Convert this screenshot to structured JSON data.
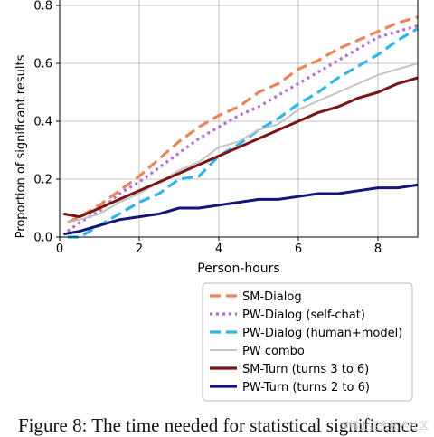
{
  "chart_data": {
    "type": "line",
    "xlabel": "Person-hours",
    "ylabel": "Proportion of significant results",
    "xlim": [
      0,
      9
    ],
    "ylim": [
      0,
      0.85
    ],
    "xticks": [
      "0",
      "2",
      "4",
      "6",
      "8"
    ],
    "yticks": [
      "0.0",
      "0.2",
      "0.4",
      "0.6",
      "0.8"
    ],
    "grid": true,
    "legend_position": "below",
    "series": [
      {
        "name": "SM-Dialog",
        "color": "#e8875a",
        "style": "dashed",
        "x": [
          0.2,
          0.5,
          1,
          1.5,
          2,
          2.5,
          3,
          3.5,
          4,
          4.5,
          5,
          5.5,
          6,
          6.5,
          7,
          7.5,
          8,
          8.5,
          9
        ],
        "y": [
          0.05,
          0.07,
          0.11,
          0.16,
          0.21,
          0.27,
          0.33,
          0.38,
          0.42,
          0.45,
          0.5,
          0.53,
          0.58,
          0.61,
          0.65,
          0.68,
          0.71,
          0.74,
          0.76
        ]
      },
      {
        "name": "PW-Dialog (self-chat)",
        "color": "#b46ed4",
        "style": "dotted",
        "x": [
          0.2,
          0.5,
          1,
          1.5,
          2,
          2.5,
          3,
          3.5,
          4,
          4.5,
          5,
          5.5,
          6,
          6.5,
          7,
          7.5,
          8,
          8.5,
          9
        ],
        "y": [
          0.02,
          0.05,
          0.09,
          0.15,
          0.19,
          0.24,
          0.29,
          0.34,
          0.38,
          0.42,
          0.45,
          0.49,
          0.53,
          0.57,
          0.61,
          0.65,
          0.69,
          0.71,
          0.73
        ]
      },
      {
        "name": "PW-Dialog (human+model)",
        "color": "#33b5e5",
        "style": "dashed",
        "x": [
          0.2,
          0.5,
          1,
          1.5,
          2,
          2.5,
          3,
          3.5,
          4,
          4.5,
          5,
          5.5,
          6,
          6.5,
          7,
          7.5,
          8,
          8.5,
          9
        ],
        "y": [
          0.0,
          0.0,
          0.04,
          0.08,
          0.12,
          0.15,
          0.2,
          0.21,
          0.28,
          0.32,
          0.37,
          0.41,
          0.46,
          0.5,
          0.55,
          0.59,
          0.63,
          0.68,
          0.72
        ]
      },
      {
        "name": "PW combo",
        "color": "#c4c4c4",
        "style": "solid",
        "x": [
          0.2,
          0.5,
          1,
          1.5,
          2,
          2.5,
          3,
          3.5,
          4,
          4.5,
          5,
          5.5,
          6,
          6.5,
          7,
          7.5,
          8,
          8.5,
          9
        ],
        "y": [
          0.05,
          0.06,
          0.08,
          0.12,
          0.15,
          0.19,
          0.23,
          0.26,
          0.31,
          0.33,
          0.37,
          0.39,
          0.44,
          0.47,
          0.5,
          0.53,
          0.56,
          0.58,
          0.6
        ]
      },
      {
        "name": "SM-Turn (turns 3 to 6)",
        "color": "#7a1515",
        "style": "solid",
        "x": [
          0.1,
          0.5,
          1,
          1.5,
          2,
          2.5,
          3,
          3.5,
          4,
          4.5,
          5,
          5.5,
          6,
          6.5,
          7,
          7.5,
          8,
          8.5,
          9
        ],
        "y": [
          0.08,
          0.07,
          0.1,
          0.13,
          0.16,
          0.19,
          0.22,
          0.25,
          0.28,
          0.31,
          0.34,
          0.37,
          0.4,
          0.43,
          0.45,
          0.48,
          0.5,
          0.53,
          0.55
        ]
      },
      {
        "name": "PW-Turn (turns 2 to 6)",
        "color": "#14147a",
        "style": "solid",
        "x": [
          0.1,
          0.5,
          1,
          1.5,
          2,
          2.5,
          3,
          3.5,
          4,
          4.5,
          5,
          5.5,
          6,
          6.5,
          7,
          7.5,
          8,
          8.5,
          9
        ],
        "y": [
          0.01,
          0.02,
          0.04,
          0.06,
          0.07,
          0.08,
          0.1,
          0.1,
          0.11,
          0.12,
          0.13,
          0.13,
          0.14,
          0.15,
          0.15,
          0.16,
          0.17,
          0.17,
          0.18
        ]
      }
    ]
  },
  "caption": "Figure 8: The time needed for statistical significance",
  "watermark": "@稀土掘金技术社区"
}
